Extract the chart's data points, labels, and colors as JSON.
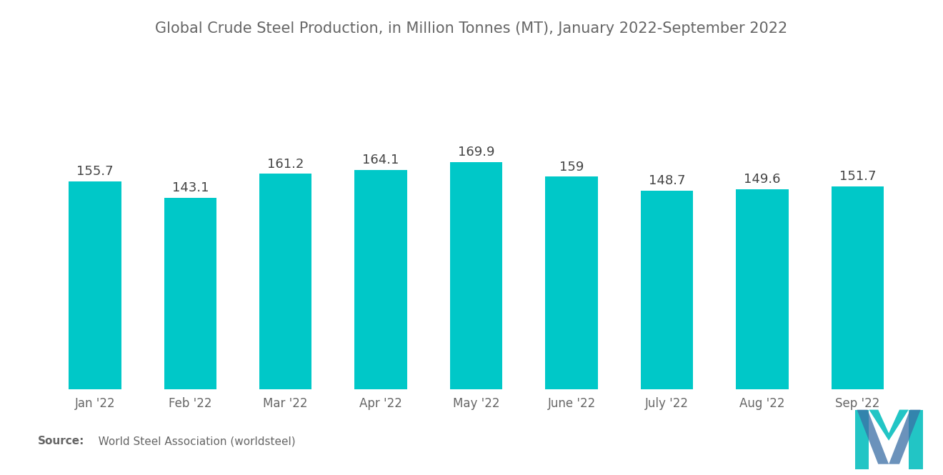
{
  "title": "Global Crude Steel Production, in Million Tonnes (MT), January 2022-September 2022",
  "categories": [
    "Jan '22",
    "Feb '22",
    "Mar '22",
    "Apr '22",
    "May '22",
    "June '22",
    "July '22",
    "Aug '22",
    "Sep '22"
  ],
  "values": [
    155.7,
    143.1,
    161.2,
    164.1,
    169.9,
    159,
    148.7,
    149.6,
    151.7
  ],
  "bar_color": "#00C8C8",
  "background_color": "#ffffff",
  "title_color": "#666666",
  "label_color": "#444444",
  "tick_color": "#666666",
  "source_label": "Source:",
  "source_detail": "   World Steel Association (worldsteel)",
  "title_fontsize": 15,
  "label_fontsize": 13,
  "tick_fontsize": 12,
  "source_fontsize": 11,
  "ylim": [
    0,
    220
  ]
}
